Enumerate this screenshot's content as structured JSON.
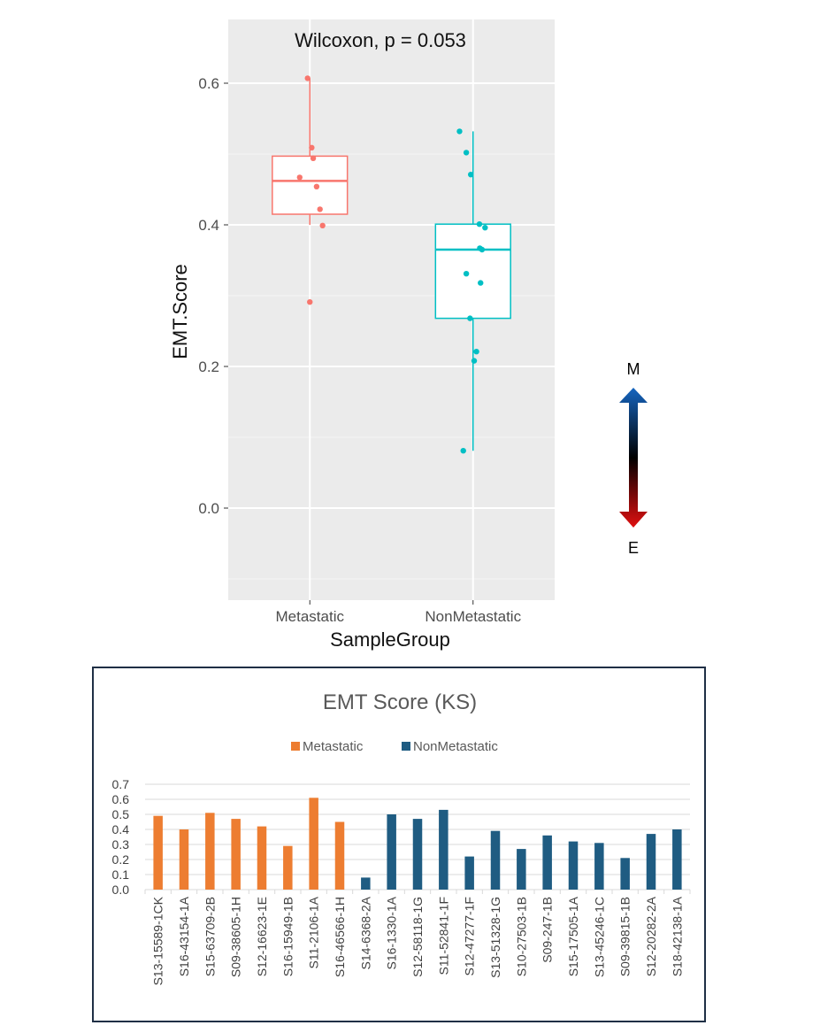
{
  "chart_data": [
    {
      "type": "box",
      "title": "Wilcoxon, p = 0.053",
      "xlabel": "SampleGroup",
      "ylabel": "EMT.Score",
      "categories": [
        "Metastatic",
        "NonMetastatic"
      ],
      "ylim": [
        -0.13,
        0.69
      ],
      "y_ticks": [
        "0.0",
        "0.2",
        "0.4",
        "0.6"
      ],
      "grid": true,
      "series": [
        {
          "name": "Metastatic",
          "color": "#f8766d",
          "box": {
            "min": 0.4,
            "q1": 0.415,
            "median": 0.462,
            "q3": 0.497,
            "max": 0.607
          },
          "points": [
            {
              "x_jitter": -0.06,
              "y": 0.607
            },
            {
              "x_jitter": 0.05,
              "y": 0.509
            },
            {
              "x_jitter": 0.09,
              "y": 0.494
            },
            {
              "x_jitter": -0.27,
              "y": 0.467
            },
            {
              "x_jitter": 0.18,
              "y": 0.454
            },
            {
              "x_jitter": 0.27,
              "y": 0.422
            },
            {
              "x_jitter": 0.34,
              "y": 0.399
            },
            {
              "x_jitter": 0.0,
              "y": 0.291
            }
          ]
        },
        {
          "name": "NonMetastatic",
          "color": "#00bfc4",
          "box": {
            "min": 0.081,
            "q1": 0.268,
            "median": 0.365,
            "q3": 0.401,
            "max": 0.532
          },
          "points": [
            {
              "x_jitter": -0.36,
              "y": 0.532
            },
            {
              "x_jitter": -0.18,
              "y": 0.502
            },
            {
              "x_jitter": -0.06,
              "y": 0.471
            },
            {
              "x_jitter": 0.17,
              "y": 0.401
            },
            {
              "x_jitter": 0.32,
              "y": 0.396
            },
            {
              "x_jitter": 0.18,
              "y": 0.367
            },
            {
              "x_jitter": 0.24,
              "y": 0.365
            },
            {
              "x_jitter": -0.18,
              "y": 0.331
            },
            {
              "x_jitter": 0.2,
              "y": 0.318
            },
            {
              "x_jitter": -0.08,
              "y": 0.268
            },
            {
              "x_jitter": 0.09,
              "y": 0.221
            },
            {
              "x_jitter": 0.03,
              "y": 0.208
            },
            {
              "x_jitter": -0.26,
              "y": 0.081
            }
          ]
        }
      ]
    },
    {
      "type": "bar",
      "title": "EMT Score (KS)",
      "xlabel": "",
      "ylabel": "",
      "ylim": [
        0,
        0.7
      ],
      "y_ticks": [
        "0.0",
        "0.1",
        "0.2",
        "0.3",
        "0.4",
        "0.5",
        "0.6",
        "0.7"
      ],
      "legend_position": "top",
      "grid": true,
      "series": [
        {
          "name": "Metastatic",
          "color": "#ed7d31"
        },
        {
          "name": "NonMetastatic",
          "color": "#1f5c82"
        }
      ],
      "categories": [
        "S13-15589-1CK",
        "S16-43154-1A",
        "S15-63709-2B",
        "S09-38605-1H",
        "S12-16623-1E",
        "S16-15949-1B",
        "S11-2106-1A",
        "S16-46566-1H",
        "S14-6368-2A",
        "S16-1330-1A",
        "S12-58118-1G",
        "S11-52841-1F",
        "S12-47277-1F",
        "S13-51328-1G",
        "S10-27503-1B",
        "S09-247-1B",
        "S15-17505-1A",
        "S13-45246-1C",
        "S09-39815-1B",
        "S12-20282-2A",
        "S18-42138-1A"
      ],
      "values": [
        0.49,
        0.4,
        0.51,
        0.47,
        0.42,
        0.29,
        0.61,
        0.45,
        0.08,
        0.5,
        0.47,
        0.53,
        0.22,
        0.39,
        0.27,
        0.36,
        0.32,
        0.31,
        0.21,
        0.37,
        0.4
      ],
      "groups": [
        "Metastatic",
        "Metastatic",
        "Metastatic",
        "Metastatic",
        "Metastatic",
        "Metastatic",
        "Metastatic",
        "Metastatic",
        "NonMetastatic",
        "NonMetastatic",
        "NonMetastatic",
        "NonMetastatic",
        "NonMetastatic",
        "NonMetastatic",
        "NonMetastatic",
        "NonMetastatic",
        "NonMetastatic",
        "NonMetastatic",
        "NonMetastatic",
        "NonMetastatic",
        "NonMetastatic"
      ]
    }
  ],
  "scale_arrow": {
    "top_label": "M",
    "bottom_label": "E",
    "top_color": "#1565c0",
    "bottom_color": "#e01010"
  }
}
